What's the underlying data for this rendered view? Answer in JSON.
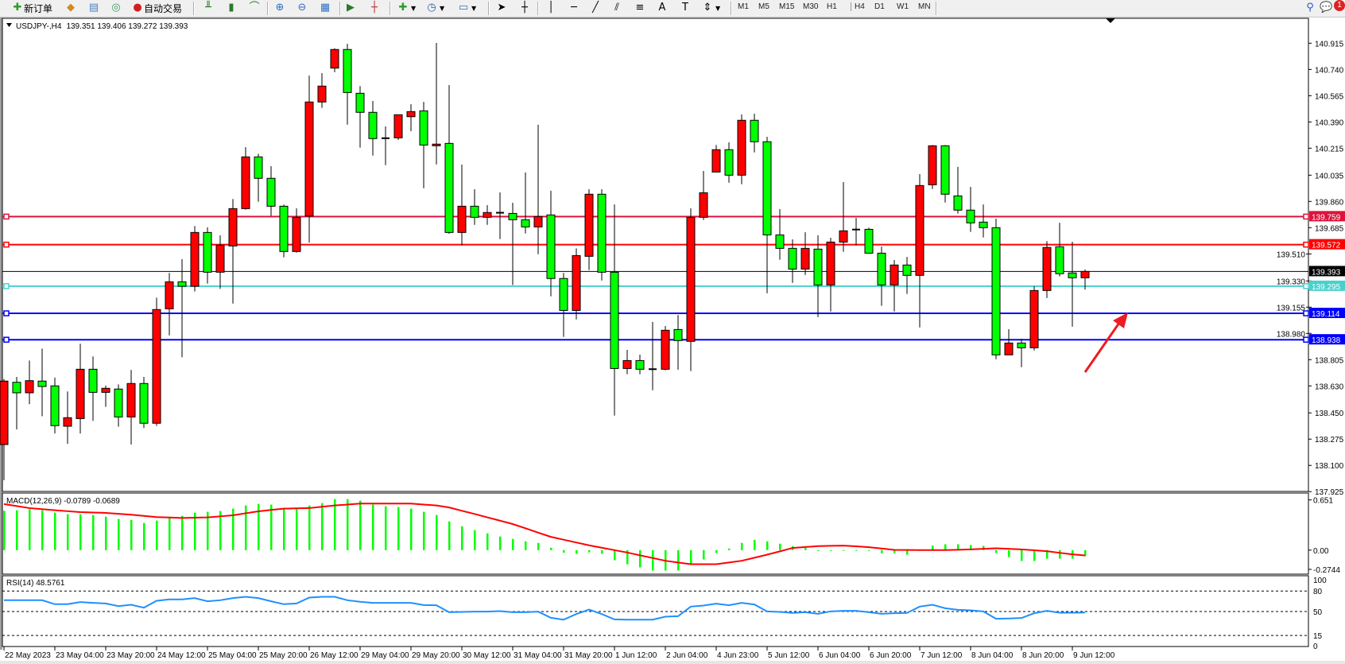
{
  "toolbar": {
    "new_order": "新订单",
    "auto_trading": "自动交易",
    "timeframes": [
      "M1",
      "M5",
      "M15",
      "M30",
      "H1",
      "H4",
      "D1",
      "W1",
      "MN"
    ],
    "active_timeframe": "H4",
    "notification_count": "1",
    "icons": [
      "new-order-icon",
      "market-watch-icon",
      "navigator-icon",
      "signals-icon",
      "auto-trading-icon",
      "bar-chart-icon",
      "candlestick-icon",
      "line-chart-icon",
      "zoom-in-icon",
      "zoom-out-icon",
      "tile-windows-icon",
      "auto-scroll-icon",
      "chart-shift-icon",
      "indicators-icon",
      "periods-icon",
      "templates-icon",
      "cursor-icon",
      "crosshair-icon",
      "vertical-line-icon",
      "horizontal-line-icon",
      "trendline-icon",
      "fibo-channel-icon",
      "fibo-icon",
      "text-icon",
      "label-icon",
      "arrows-icon",
      "search-icon",
      "notifications-icon"
    ]
  },
  "chart_header": {
    "symbol": "USDJPY-,H4",
    "ohlc": "139.351 139.406 139.272 139.393"
  },
  "colors": {
    "bull_body": "#ff0000",
    "bear_body": "#00ff00",
    "outline": "#000000",
    "macd_hist": "#00ff00",
    "macd_signal": "#ff0000",
    "rsi_line": "#1e90ff"
  },
  "chart_data": [
    {
      "type": "candlestick",
      "symbol": "USDJPY-",
      "timeframe": "H4",
      "ylim": [
        137.925,
        140.915
      ],
      "y_ticks": [
        "140.915",
        "140.740",
        "140.565",
        "140.390",
        "140.215",
        "140.035",
        "139.860",
        "139.685",
        "139.510",
        "139.330",
        "139.155",
        "138.980",
        "138.805",
        "138.630",
        "138.450",
        "138.275",
        "138.100",
        "137.925"
      ],
      "x_tick_labels": [
        "22 May 2023",
        "23 May 04:00",
        "23 May 20:00",
        "24 May 12:00",
        "25 May 04:00",
        "25 May 20:00",
        "26 May 12:00",
        "29 May 04:00",
        "29 May 20:00",
        "30 May 12:00",
        "31 May 04:00",
        "31 May 20:00",
        "1 Jun 12:00",
        "2 Jun 04:00",
        "4 Jun 23:00",
        "5 Jun 12:00",
        "6 Jun 04:00",
        "6 Jun 20:00",
        "7 Jun 12:00",
        "8 Jun 04:00",
        "8 Jun 20:00",
        "9 Jun 12:00"
      ],
      "x_tick_every_bars": 4,
      "candle_fields": [
        "open",
        "high",
        "low",
        "close"
      ],
      "candles": [
        [
          138.239,
          138.676,
          138.001,
          138.662
        ],
        [
          138.654,
          138.69,
          138.34,
          138.584
        ],
        [
          138.584,
          138.799,
          138.508,
          138.665
        ],
        [
          138.662,
          138.879,
          138.428,
          138.626
        ],
        [
          138.63,
          138.685,
          138.313,
          138.365
        ],
        [
          138.361,
          138.593,
          138.244,
          138.418
        ],
        [
          138.412,
          138.911,
          138.313,
          138.741
        ],
        [
          138.741,
          138.826,
          138.397,
          138.587
        ],
        [
          138.587,
          138.632,
          138.49,
          138.614
        ],
        [
          138.609,
          138.64,
          138.358,
          138.423
        ],
        [
          138.423,
          138.736,
          138.239,
          138.646
        ],
        [
          138.646,
          138.69,
          138.349,
          138.381
        ],
        [
          138.381,
          139.218,
          138.363,
          139.139
        ],
        [
          139.144,
          139.383,
          138.967,
          139.324
        ],
        [
          139.324,
          139.475,
          138.821,
          139.294
        ],
        [
          139.294,
          139.696,
          139.259,
          139.653
        ],
        [
          139.653,
          139.687,
          139.312,
          139.388
        ],
        [
          139.388,
          139.634,
          139.277,
          139.568
        ],
        [
          139.563,
          139.876,
          139.179,
          139.812
        ],
        [
          139.812,
          140.222,
          139.805,
          140.157
        ],
        [
          140.157,
          140.178,
          139.858,
          140.014
        ],
        [
          140.014,
          140.095,
          139.763,
          139.828
        ],
        [
          139.828,
          139.839,
          139.487,
          139.526
        ],
        [
          139.526,
          139.814,
          139.519,
          139.754
        ],
        [
          139.763,
          140.699,
          139.586,
          140.523
        ],
        [
          140.523,
          140.715,
          140.484,
          140.629
        ],
        [
          140.749,
          140.881,
          140.722,
          140.873
        ],
        [
          140.873,
          140.911,
          140.372,
          140.586
        ],
        [
          140.581,
          140.629,
          140.219,
          140.454
        ],
        [
          140.454,
          140.53,
          140.166,
          140.279
        ],
        [
          140.282,
          140.36,
          140.102,
          140.281
        ],
        [
          140.284,
          140.438,
          140.27,
          140.438
        ],
        [
          140.425,
          140.508,
          140.328,
          140.459
        ],
        [
          140.464,
          140.524,
          139.948,
          140.236
        ],
        [
          140.231,
          140.917,
          140.107,
          140.242
        ],
        [
          140.247,
          140.636,
          139.644,
          139.653
        ],
        [
          139.653,
          140.106,
          139.566,
          139.828
        ],
        [
          139.828,
          139.941,
          139.704,
          139.754
        ],
        [
          139.754,
          139.835,
          139.704,
          139.786
        ],
        [
          139.785,
          139.92,
          139.609,
          139.784
        ],
        [
          139.78,
          139.851,
          139.303,
          139.738
        ],
        [
          139.738,
          140.053,
          139.646,
          139.69
        ],
        [
          139.69,
          140.371,
          139.508,
          139.759
        ],
        [
          139.77,
          139.931,
          139.227,
          139.346
        ],
        [
          139.346,
          139.383,
          138.957,
          139.133
        ],
        [
          139.133,
          139.547,
          139.073,
          139.499
        ],
        [
          139.494,
          139.941,
          139.402,
          139.908
        ],
        [
          139.908,
          139.941,
          139.333,
          139.388
        ],
        [
          139.388,
          139.84,
          138.432,
          138.746
        ],
        [
          138.746,
          138.87,
          138.708,
          138.799
        ],
        [
          138.799,
          138.838,
          138.708,
          138.741
        ],
        [
          138.741,
          139.056,
          138.601,
          138.742
        ],
        [
          138.741,
          139.029,
          138.734,
          139.001
        ],
        [
          139.006,
          139.103,
          138.738,
          138.932
        ],
        [
          138.927,
          139.814,
          138.729,
          139.754
        ],
        [
          139.754,
          140.063,
          139.736,
          139.918
        ],
        [
          140.056,
          140.236,
          140.056,
          140.205
        ],
        [
          140.205,
          140.254,
          139.985,
          140.035
        ],
        [
          140.035,
          140.44,
          139.975,
          140.401
        ],
        [
          140.401,
          140.445,
          140.187,
          140.258
        ],
        [
          140.258,
          140.291,
          139.248,
          139.637
        ],
        [
          139.637,
          139.809,
          139.471,
          139.547
        ],
        [
          139.547,
          139.607,
          139.317,
          139.409
        ],
        [
          139.409,
          139.655,
          139.37,
          139.547
        ],
        [
          139.542,
          139.634,
          139.089,
          139.303
        ],
        [
          139.303,
          139.618,
          139.126,
          139.589
        ],
        [
          139.589,
          139.989,
          139.524,
          139.664
        ],
        [
          139.672,
          139.75,
          139.566,
          139.673
        ],
        [
          139.674,
          139.685,
          139.515,
          139.515
        ],
        [
          139.515,
          139.559,
          139.164,
          139.303
        ],
        [
          139.303,
          139.469,
          139.126,
          139.436
        ],
        [
          139.436,
          139.49,
          139.243,
          139.367
        ],
        [
          139.367,
          140.042,
          139.02,
          139.966
        ],
        [
          139.971,
          140.236,
          139.943,
          140.231
        ],
        [
          140.231,
          140.236,
          139.853,
          139.908
        ],
        [
          139.897,
          140.09,
          139.779,
          139.802
        ],
        [
          139.802,
          139.957,
          139.657,
          139.717
        ],
        [
          139.722,
          139.84,
          139.62,
          139.685
        ],
        [
          139.685,
          139.745,
          138.808,
          138.837
        ],
        [
          138.837,
          139.008,
          138.837,
          138.916
        ],
        [
          138.916,
          138.944,
          138.755,
          138.884
        ],
        [
          138.884,
          139.294,
          138.866,
          139.266
        ],
        [
          139.266,
          139.595,
          139.216,
          139.553
        ],
        [
          139.558,
          139.718,
          139.36,
          139.378
        ],
        [
          139.383,
          139.591,
          139.025,
          139.351
        ],
        [
          139.351,
          139.406,
          139.272,
          139.393
        ]
      ],
      "horizontal_lines": [
        {
          "price": "139.759",
          "color": "#dc143c"
        },
        {
          "price": "139.572",
          "color": "#ff0000"
        },
        {
          "price": "139.393",
          "color": "#000000",
          "kind": "bid"
        },
        {
          "price": "139.295",
          "color": "#48d1cc"
        },
        {
          "price": "139.114",
          "color": "#0000ff"
        },
        {
          "price": "138.938",
          "color": "#0000ff"
        }
      ],
      "annotations": [
        {
          "type": "arrow",
          "color": "#ed1c24",
          "points_to_price": 139.114
        }
      ]
    },
    {
      "type": "bar+line",
      "label": "MACD(12,26,9) -0.0789 -0.0689",
      "y_ticks": [
        "0.651",
        "0.00",
        "-0.2744"
      ],
      "ylim": [
        -0.3,
        0.73
      ],
      "macd": [
        0.51,
        0.517,
        0.531,
        0.517,
        0.486,
        0.465,
        0.465,
        0.455,
        0.434,
        0.403,
        0.393,
        0.352,
        0.383,
        0.421,
        0.445,
        0.486,
        0.497,
        0.507,
        0.538,
        0.579,
        0.6,
        0.59,
        0.548,
        0.538,
        0.579,
        0.61,
        0.662,
        0.662,
        0.641,
        0.59,
        0.569,
        0.559,
        0.538,
        0.497,
        0.455,
        0.372,
        0.31,
        0.259,
        0.217,
        0.176,
        0.145,
        0.114,
        0.093,
        0.031,
        -0.034,
        -0.048,
        -0.028,
        -0.048,
        -0.131,
        -0.183,
        -0.224,
        -0.265,
        -0.265,
        -0.265,
        -0.193,
        -0.121,
        -0.038,
        0.021,
        0.093,
        0.134,
        0.114,
        0.083,
        0.052,
        0.031,
        -0.007,
        -0.007,
        0.003,
        0.0,
        -0.01,
        -0.041,
        -0.038,
        -0.059,
        0.0,
        0.059,
        0.076,
        0.076,
        0.066,
        0.055,
        -0.038,
        -0.09,
        -0.141,
        -0.141,
        -0.11,
        -0.11,
        -0.11,
        -0.0789
      ],
      "signal": [
        0.597,
        0.571,
        0.545,
        0.531,
        0.517,
        0.505,
        0.493,
        0.488,
        0.483,
        0.471,
        0.459,
        0.444,
        0.428,
        0.423,
        0.417,
        0.421,
        0.424,
        0.438,
        0.452,
        0.478,
        0.503,
        0.521,
        0.538,
        0.542,
        0.545,
        0.562,
        0.579,
        0.591,
        0.603,
        0.603,
        0.603,
        0.603,
        0.603,
        0.591,
        0.579,
        0.553,
        0.51,
        0.469,
        0.425,
        0.382,
        0.338,
        0.283,
        0.227,
        0.172,
        0.135,
        0.099,
        0.062,
        0.031,
        0.0,
        -0.031,
        -0.067,
        -0.102,
        -0.138,
        -0.161,
        -0.183,
        -0.183,
        -0.183,
        -0.161,
        -0.138,
        -0.099,
        -0.059,
        -0.016,
        0.028,
        0.04,
        0.052,
        0.056,
        0.059,
        0.049,
        0.038,
        0.021,
        0.003,
        0.002,
        0.0,
        0.0,
        0.0,
        0.005,
        0.01,
        0.017,
        0.024,
        0.017,
        0.01,
        -0.002,
        -0.014,
        -0.035,
        -0.055,
        -0.0689
      ]
    },
    {
      "type": "line",
      "label": "RSI(14) 48.5761",
      "ylim": [
        0,
        100
      ],
      "y_ticks": [
        "100",
        "80",
        "50",
        "15",
        "0"
      ],
      "levels": [
        80,
        50,
        15
      ],
      "values": [
        66.5,
        66.5,
        66.5,
        66.5,
        60.7,
        60.7,
        63.8,
        62.6,
        61.8,
        57.9,
        59.9,
        55.6,
        65.7,
        67.7,
        67.7,
        69.6,
        65.0,
        66.5,
        69.6,
        71.5,
        69.6,
        65.0,
        60.7,
        61.8,
        70.3,
        71.5,
        71.5,
        66.5,
        64.2,
        62.6,
        62.6,
        62.6,
        62.6,
        59.5,
        59.1,
        49.0,
        49.4,
        49.8,
        49.8,
        50.6,
        49.0,
        49.0,
        49.8,
        40.8,
        38.1,
        46.3,
        52.9,
        46.3,
        38.5,
        38.1,
        38.1,
        38.1,
        42.4,
        43.1,
        57.2,
        58.7,
        61.5,
        59.2,
        62.6,
        60.3,
        50.2,
        49.4,
        47.9,
        49.0,
        46.7,
        50.2,
        51.0,
        51.0,
        49.0,
        46.7,
        47.5,
        47.9,
        57.2,
        59.9,
        54.8,
        52.5,
        51.8,
        50.2,
        39.4,
        39.8,
        40.5,
        47.5,
        51.0,
        48.3,
        48.3,
        48.6
      ]
    }
  ]
}
